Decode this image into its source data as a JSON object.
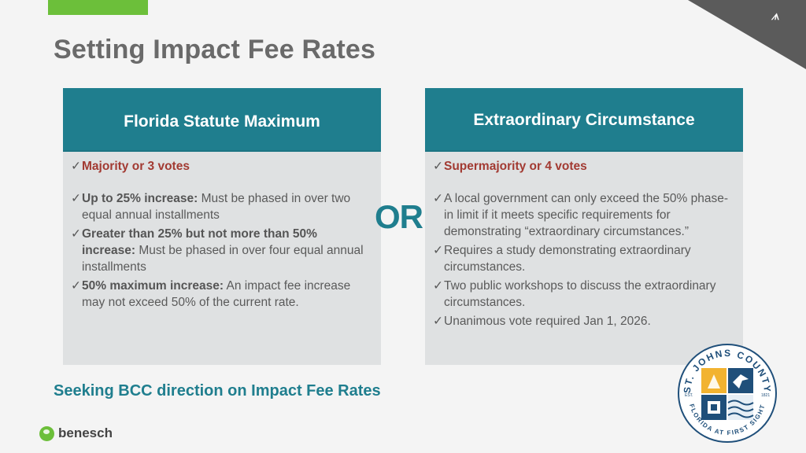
{
  "slide": {
    "title": "Setting Impact Fee Rates",
    "corner_mark": "ᗑ"
  },
  "left": {
    "header": "Florida Statute Maximum",
    "vote": "Majority or 3 votes",
    "items": [
      {
        "bold": "Up to 25% increase:",
        "text": "  Must be phased in over two equal annual installments"
      },
      {
        "bold": "Greater than 25% but not more than 50% increase:",
        "text": "  Must be phased in over four equal annual installments"
      },
      {
        "bold": "50% maximum increase:",
        "text": "  An impact fee increase may not exceed 50% of the current rate."
      }
    ]
  },
  "or_label": "OR",
  "right": {
    "header": "Extraordinary Circumstance",
    "vote": "Supermajority or 4 votes",
    "items": [
      "A local government can only exceed the 50% phase-in limit if it meets specific requirements for demonstrating “extraordinary circumstances.”",
      "Requires a study demonstrating extraordinary circumstances.",
      "Two public workshops to discuss the extraordinary circumstances.",
      "Unanimous vote required Jan 1, 2026."
    ]
  },
  "footer": {
    "seeking": "Seeking BCC direction on Impact Fee Rates",
    "brand": "benesch"
  },
  "seal": {
    "top_text": "ST. JOHNS COUNTY",
    "bottom_text": "FLORIDA AT FIRST SIGHT",
    "est": "EST.",
    "year": "1821"
  },
  "colors": {
    "teal": "#1f7e8e",
    "green": "#6cbf3a",
    "red": "#a23a32",
    "panel": "#dfe1e2"
  }
}
